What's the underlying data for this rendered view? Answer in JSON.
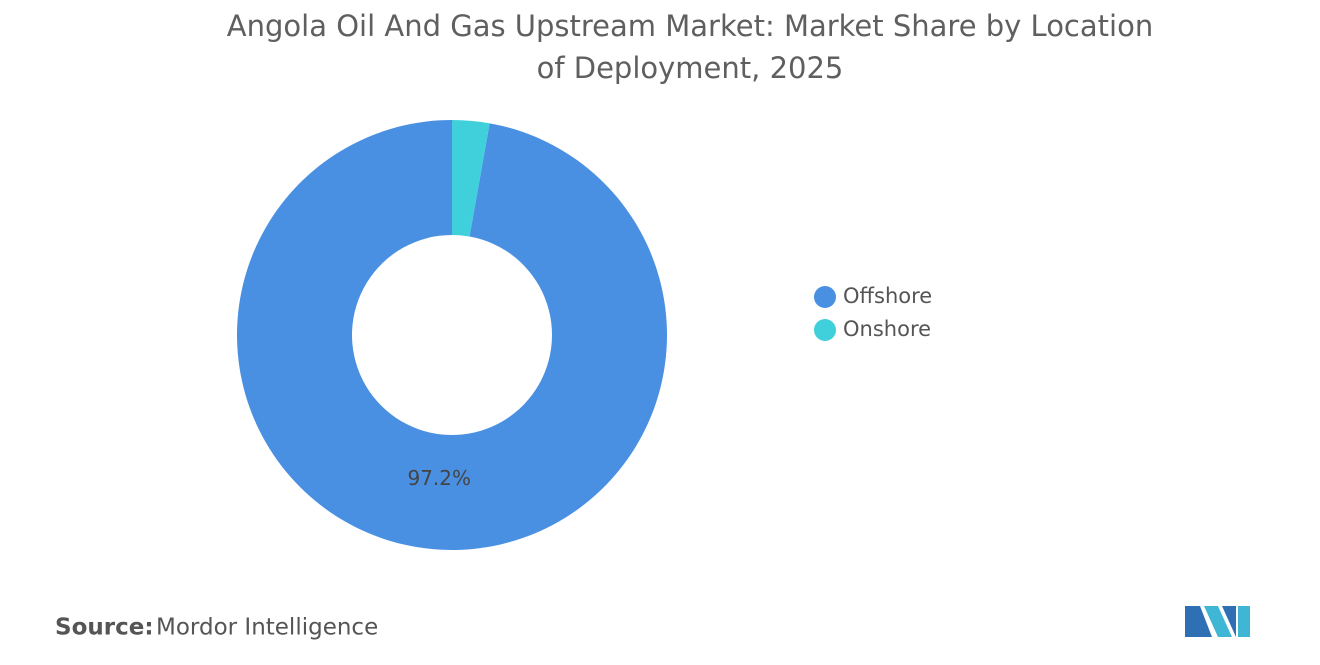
{
  "chart_data": {
    "type": "donut",
    "title": "Angola Oil And Gas Upstream Market: Market Share by Location of Deployment, 2025",
    "categories": [
      "Offshore",
      "Onshore"
    ],
    "values": [
      97.2,
      2.8
    ],
    "value_labels": [
      "97.2%",
      null
    ],
    "colors": [
      "#4a90e2",
      "#3fd0dc"
    ],
    "legend": "right",
    "source_label": "Source:",
    "source": "Mordor Intelligence"
  }
}
